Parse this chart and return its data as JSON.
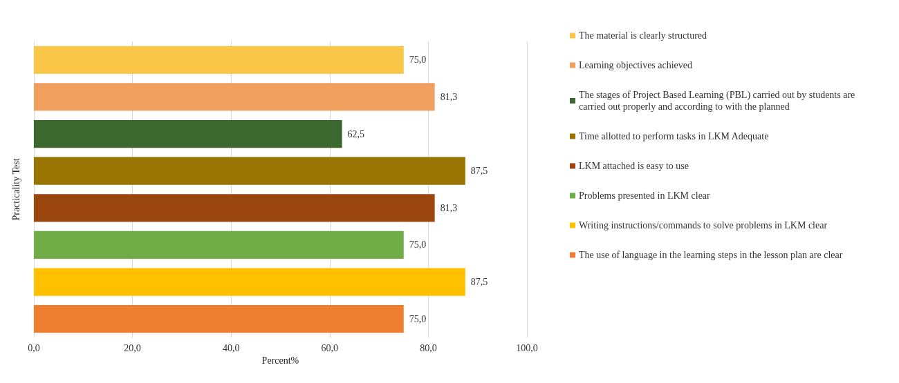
{
  "chart_data": {
    "type": "bar",
    "orientation": "horizontal",
    "xlabel": "Percent%",
    "ylabel": "Practicality Test",
    "categories": [
      null,
      null,
      null,
      null,
      null,
      null,
      null,
      null
    ],
    "series": [
      {
        "name": "The material is clearly structured",
        "color": "#fac748",
        "values": [
          75.0,
          null,
          null,
          null,
          null,
          null,
          null,
          null
        ],
        "value_labels": [
          "75,0",
          null,
          null,
          null,
          null,
          null,
          null,
          null
        ]
      },
      {
        "name": "Learning objectives achieved",
        "color": "#f19f5e",
        "values": [
          null,
          81.3,
          null,
          null,
          null,
          null,
          null,
          null
        ],
        "value_labels": [
          null,
          "81,3",
          null,
          null,
          null,
          null,
          null,
          null
        ]
      },
      {
        "name": "The stages of Project Based Learning (PBL) carried out by students are carried out properly and according to with the planned",
        "color": "#3c672e",
        "values": [
          null,
          null,
          62.5,
          null,
          null,
          null,
          null,
          null
        ],
        "value_labels": [
          null,
          null,
          "62,5",
          null,
          null,
          null,
          null,
          null
        ]
      },
      {
        "name": "Time allotted to perform tasks in LKM Adequate",
        "color": "#9a7400",
        "values": [
          null,
          null,
          null,
          87.5,
          null,
          null,
          null,
          null
        ],
        "value_labels": [
          null,
          null,
          null,
          "87,5",
          null,
          null,
          null,
          null
        ]
      },
      {
        "name": "LKM attached is easy to use",
        "color": "#9c460f",
        "values": [
          null,
          null,
          null,
          null,
          81.3,
          null,
          null,
          null
        ],
        "value_labels": [
          null,
          null,
          null,
          null,
          "81,3",
          null,
          null,
          null
        ]
      },
      {
        "name": "Problems presented in LKM clear",
        "color": "#70ad47",
        "values": [
          null,
          null,
          null,
          null,
          null,
          75.0,
          null,
          null
        ],
        "value_labels": [
          null,
          null,
          null,
          null,
          null,
          "75,0",
          null,
          null
        ]
      },
      {
        "name": "Writing instructions/commands to solve problems in LKM clear",
        "color": "#ffc000",
        "values": [
          null,
          null,
          null,
          null,
          null,
          null,
          87.5,
          null
        ],
        "value_labels": [
          null,
          null,
          null,
          null,
          null,
          null,
          "87,5",
          null
        ]
      },
      {
        "name": "The use of language in the learning steps in the lesson plan are clear",
        "color": "#ed7d31",
        "values": [
          null,
          null,
          null,
          null,
          null,
          null,
          null,
          75.0
        ],
        "value_labels": [
          null,
          null,
          null,
          null,
          null,
          null,
          null,
          "75,0"
        ]
      }
    ],
    "xlim": [
      0,
      100
    ],
    "xticks": [
      {
        "value": 0,
        "label": "0,0"
      },
      {
        "value": 20,
        "label": "20,0"
      },
      {
        "value": 40,
        "label": "40,0"
      },
      {
        "value": 60,
        "label": "60,0"
      },
      {
        "value": 80,
        "label": "80,0"
      },
      {
        "value": 100,
        "label": "100,0"
      }
    ],
    "grid": "x",
    "legend": "right"
  }
}
